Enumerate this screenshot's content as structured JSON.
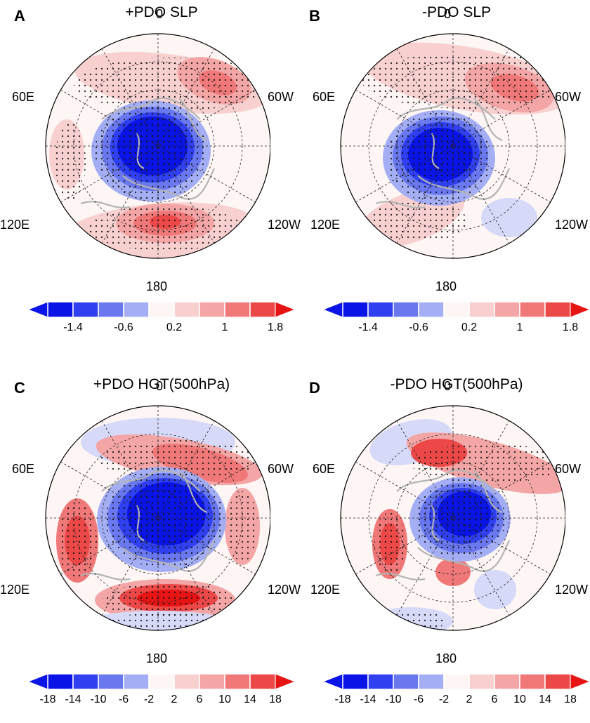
{
  "panels": [
    {
      "letter": "A",
      "title": "+PDO SLP",
      "lon": {
        "top": "0",
        "left": "60E",
        "right": "60W",
        "lower_left": "120E",
        "lower_right": "120W",
        "bottom": "180"
      },
      "colorbar": [
        "-1.4",
        "-0.6",
        "0.2",
        "1",
        "1.8"
      ]
    },
    {
      "letter": "B",
      "title": "-PDO SLP",
      "lon": {
        "top": "0",
        "left": "60E",
        "right": "60W",
        "lower_left": "120E",
        "lower_right": "120W",
        "bottom": "180"
      },
      "colorbar": [
        "-1.4",
        "-0.6",
        "0.2",
        "1",
        "1.8"
      ]
    },
    {
      "letter": "C",
      "title": "+PDO HGT(500hPa)",
      "lon": {
        "top": "0",
        "left": "60E",
        "right": "60W",
        "lower_left": "120E",
        "lower_right": "120W",
        "bottom": "180"
      },
      "colorbar": [
        "-18",
        "-14",
        "-10",
        "-6",
        "-2",
        "2",
        "6",
        "10",
        "14",
        "18"
      ]
    },
    {
      "letter": "D",
      "title": "-PDO HGT(500hPa)",
      "lon": {
        "top": "0",
        "left": "60E",
        "right": "60W",
        "lower_left": "120E",
        "lower_right": "120W",
        "bottom": "180"
      },
      "colorbar": [
        "-18",
        "-14",
        "-10",
        "-6",
        "-2",
        "2",
        "6",
        "10",
        "14",
        "18"
      ]
    }
  ],
  "colors": {
    "neg": [
      "#0a14e6",
      "#3040f0",
      "#6a78f0",
      "#a4aef4",
      "#d6daf8"
    ],
    "mid": "#fdf6f4",
    "pos": [
      "#f8d0d0",
      "#f4a6a6",
      "#f07878",
      "#ec4848",
      "#e61414"
    ],
    "coast": "#b4b4b4"
  }
}
